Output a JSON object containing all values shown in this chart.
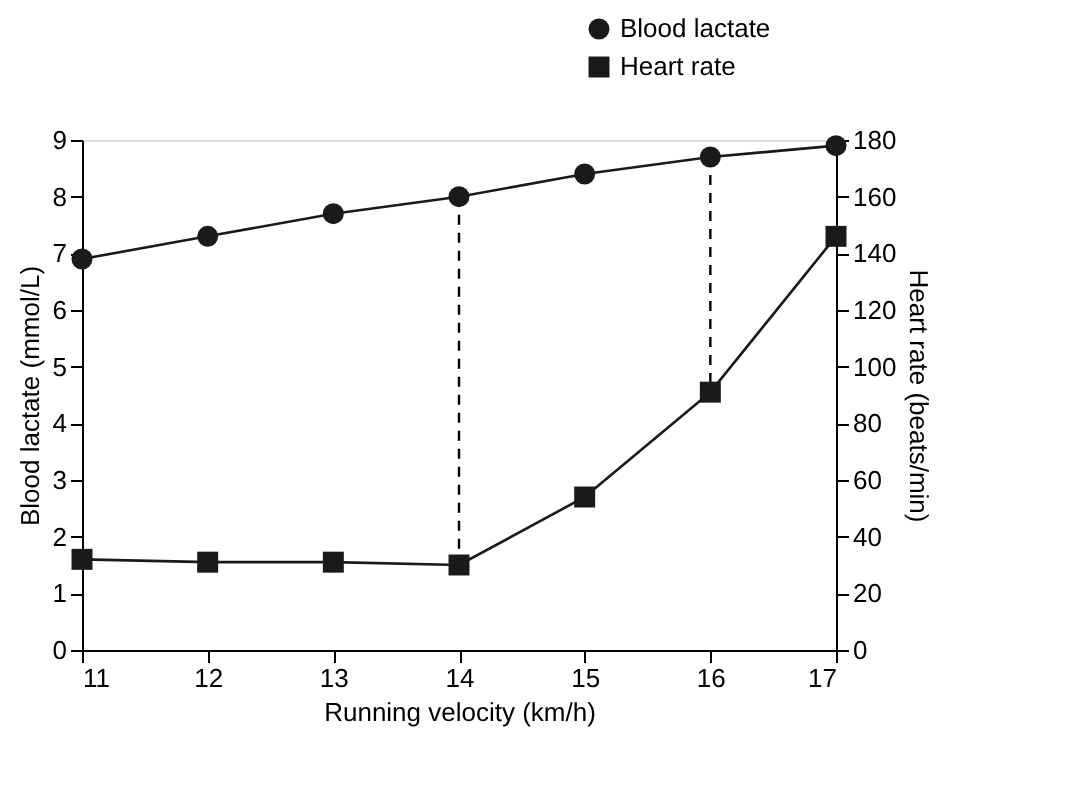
{
  "chart_data": {
    "type": "line",
    "xlabel": "Running velocity (km/h)",
    "ylabel": "Blood lactate (mmol/L)",
    "y2label": "Heart rate (beats/min)",
    "x": [
      11,
      12,
      13,
      14,
      15,
      16,
      17
    ],
    "series": [
      {
        "name": "Blood lactate",
        "color": "#1a1a1a",
        "marker": "circle",
        "values": [
          6.9,
          7.3,
          7.7,
          8.0,
          8.4,
          8.7,
          8.9
        ]
      },
      {
        "name": "Heart rate",
        "color": "#1a1a1a",
        "marker": "square",
        "axis": "y2",
        "values": [
          32,
          31,
          31,
          30,
          54,
          91,
          146
        ]
      }
    ],
    "xlim": [
      11,
      17
    ],
    "xticks": [
      11,
      12,
      13,
      14,
      15,
      16,
      17
    ],
    "ylim": [
      0,
      9
    ],
    "yticks": [
      0,
      1,
      2,
      3,
      4,
      5,
      6,
      7,
      8,
      9
    ],
    "y2lim": [
      0,
      180
    ],
    "y2ticks": [
      0,
      20,
      40,
      60,
      80,
      100,
      120,
      140,
      160,
      180
    ],
    "ref_lines": [
      {
        "axis": "x",
        "value": 14,
        "line_style": "dashed"
      },
      {
        "axis": "x",
        "value": 16,
        "line_style": "dashed"
      }
    ],
    "grid": false,
    "legend": "top right",
    "line_style": "solid"
  }
}
